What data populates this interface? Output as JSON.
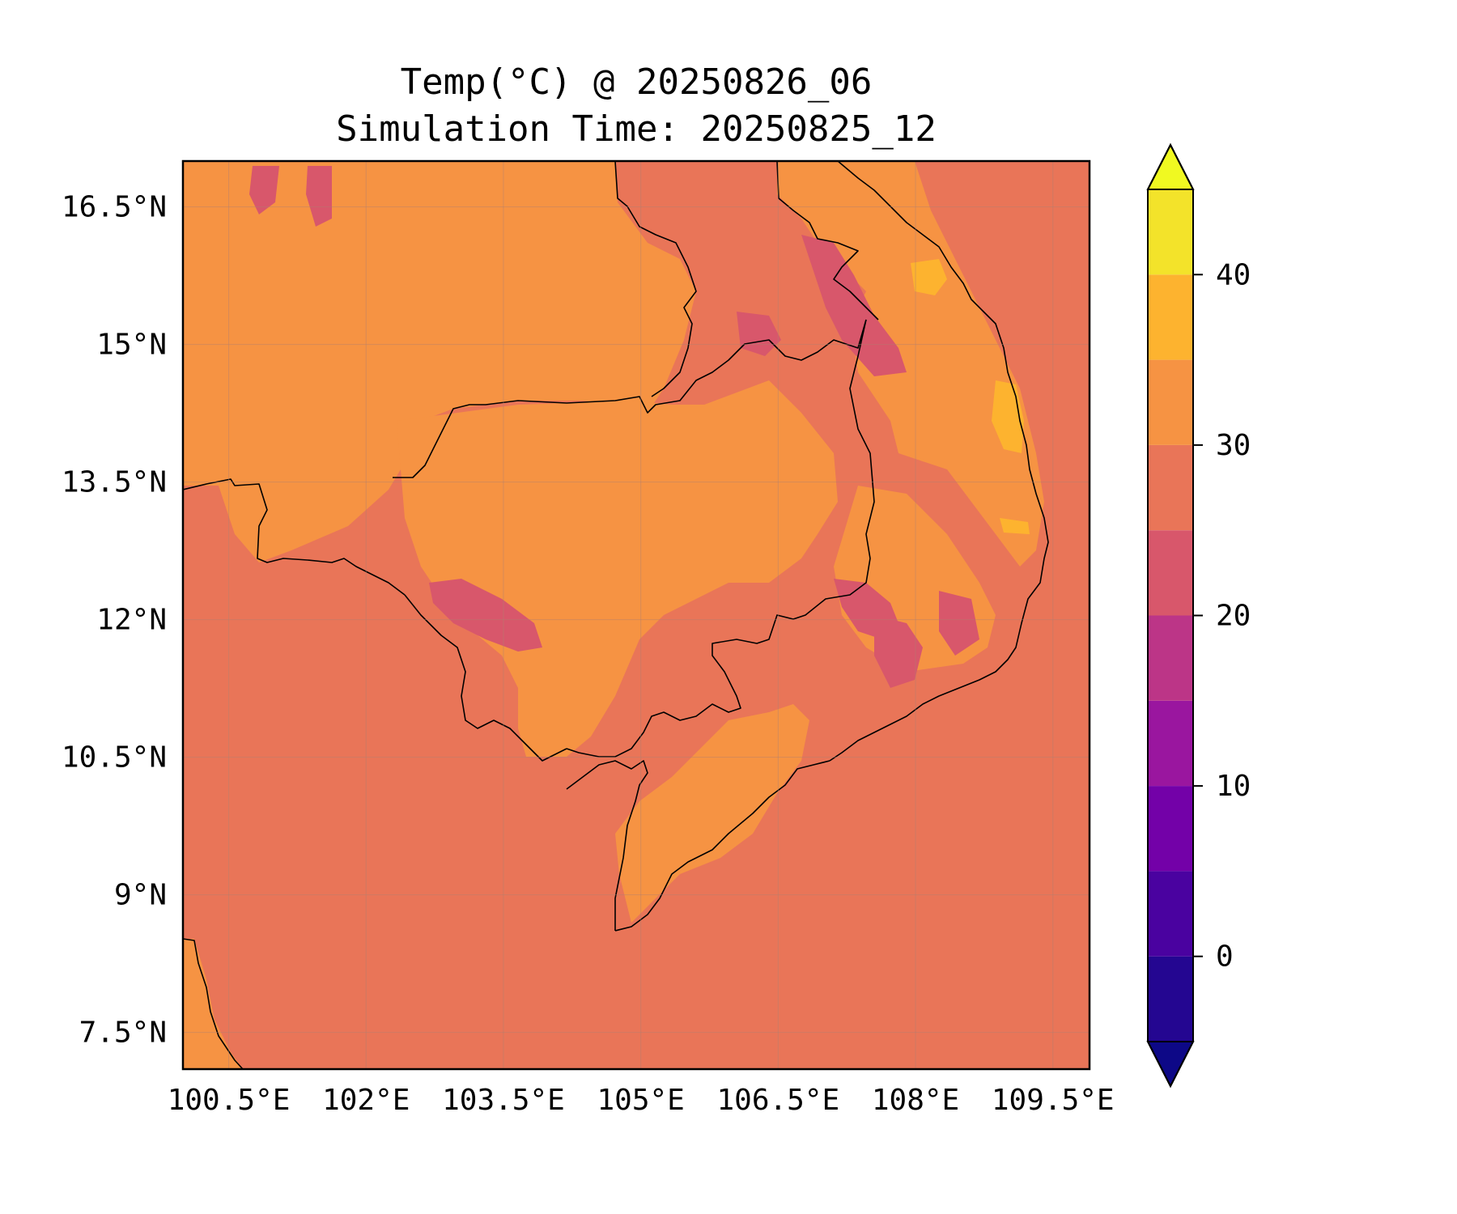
{
  "title": {
    "line1": "Temp(°C) @ 20250826_06",
    "line2": "Simulation Time: 20250825_12"
  },
  "map": {
    "variable": "Temperature",
    "units": "°C",
    "lon_range": [
      100.0,
      109.9
    ],
    "lat_range": [
      7.1,
      17.0
    ],
    "x_ticks": [
      "100.5°E",
      "102°E",
      "103.5°E",
      "105°E",
      "106.5°E",
      "108°E",
      "109.5°E"
    ],
    "x_tick_values": [
      100.5,
      102,
      103.5,
      105,
      106.5,
      108,
      109.5
    ],
    "y_ticks": [
      "16.5°N",
      "15°N",
      "13.5°N",
      "12°N",
      "10.5°N",
      "9°N",
      "7.5°N"
    ],
    "y_tick_values": [
      16.5,
      15,
      13.5,
      12,
      10.5,
      9,
      7.5
    ],
    "grid": true,
    "background_level_color": "#e97558",
    "land_level_color": "#f69343"
  },
  "colorbar": {
    "orientation": "vertical",
    "extend": "both",
    "levels": [
      -5,
      0,
      5,
      10,
      15,
      20,
      25,
      30,
      35,
      40,
      45
    ],
    "colors": [
      "#240691",
      "#4a02a0",
      "#7301a8",
      "#9a169f",
      "#bc3587",
      "#d8576b",
      "#e97558",
      "#f69343",
      "#fdb32f",
      "#f3e32a"
    ],
    "under_color": "#0d0887",
    "over_color": "#f0f921",
    "tick_labels": [
      "0",
      "10",
      "20",
      "30",
      "40"
    ],
    "tick_values": [
      0,
      10,
      20,
      30,
      40
    ]
  }
}
